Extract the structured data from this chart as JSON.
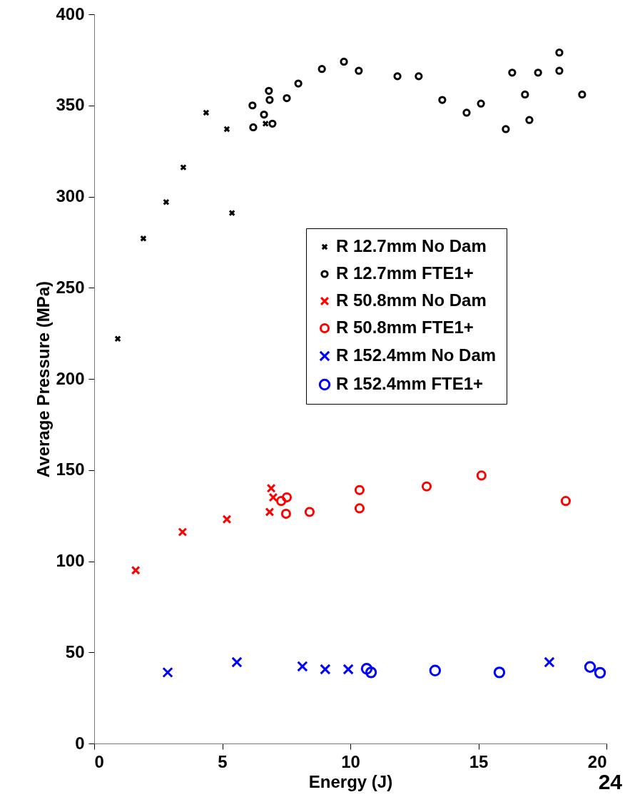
{
  "chart_data": {
    "type": "scatter",
    "xlabel": "Energy (J)",
    "ylabel": "Average Pressure (MPa)",
    "xlim": [
      0,
      20
    ],
    "ylim": [
      0,
      400
    ],
    "xticks": [
      0,
      5,
      10,
      15,
      20
    ],
    "yticks": [
      0,
      50,
      100,
      150,
      200,
      250,
      300,
      350,
      400
    ],
    "grid": false,
    "legend": "top right",
    "annotations": [
      "24"
    ],
    "series": [
      {
        "name": "R 12.7mm No Dam",
        "color": "#000000",
        "marker": "cross",
        "x": [
          0.92,
          1.92,
          2.81,
          3.48,
          4.37,
          5.18,
          5.38,
          6.69
        ],
        "values": [
          222,
          277,
          297,
          316,
          346,
          337,
          291,
          340
        ]
      },
      {
        "name": "R 12.7mm FTE1+",
        "color": "#000000",
        "marker": "circle",
        "x": [
          6.21,
          6.18,
          6.63,
          6.82,
          6.85,
          6.96,
          7.52,
          7.97,
          8.89,
          9.75,
          10.33,
          11.84,
          12.67,
          13.59,
          14.54,
          15.1,
          16.07,
          16.32,
          16.82,
          16.99,
          17.33,
          18.16,
          18.16,
          19.05
        ],
        "values": [
          338,
          350,
          345,
          358,
          353,
          340,
          354,
          362,
          370,
          374,
          369,
          366,
          366,
          353,
          346,
          351,
          337,
          368,
          356,
          342,
          368,
          379,
          369,
          356
        ]
      },
      {
        "name": "R 50.8mm No Dam",
        "color": "#ff0000",
        "marker": "cross",
        "x": [
          1.62,
          3.45,
          5.18,
          6.85,
          6.91,
          6.99
        ],
        "values": [
          95,
          116,
          123,
          127,
          140,
          135
        ]
      },
      {
        "name": "R 50.8mm FTE1+",
        "color": "#ff0000",
        "marker": "circle",
        "x": [
          7.3,
          7.52,
          7.49,
          8.41,
          10.36,
          10.36,
          12.98,
          15.12,
          18.41
        ],
        "values": [
          133,
          135,
          126,
          127,
          139,
          129,
          141,
          147,
          133
        ]
      },
      {
        "name": "R 152.4mm No Dam",
        "color": "#0000ff",
        "marker": "cross",
        "x": [
          2.87,
          5.57,
          8.13,
          9.02,
          9.92,
          17.77
        ],
        "values": [
          39,
          44.6,
          42.3,
          40.7,
          40.7,
          44.6
        ]
      },
      {
        "name": "R 152.4mm FTE1+",
        "color": "#0000ff",
        "marker": "circle",
        "x": [
          10.64,
          10.81,
          13.31,
          15.82,
          19.36,
          19.75
        ],
        "values": [
          41,
          39,
          40,
          39,
          42,
          38.8
        ]
      }
    ]
  }
}
